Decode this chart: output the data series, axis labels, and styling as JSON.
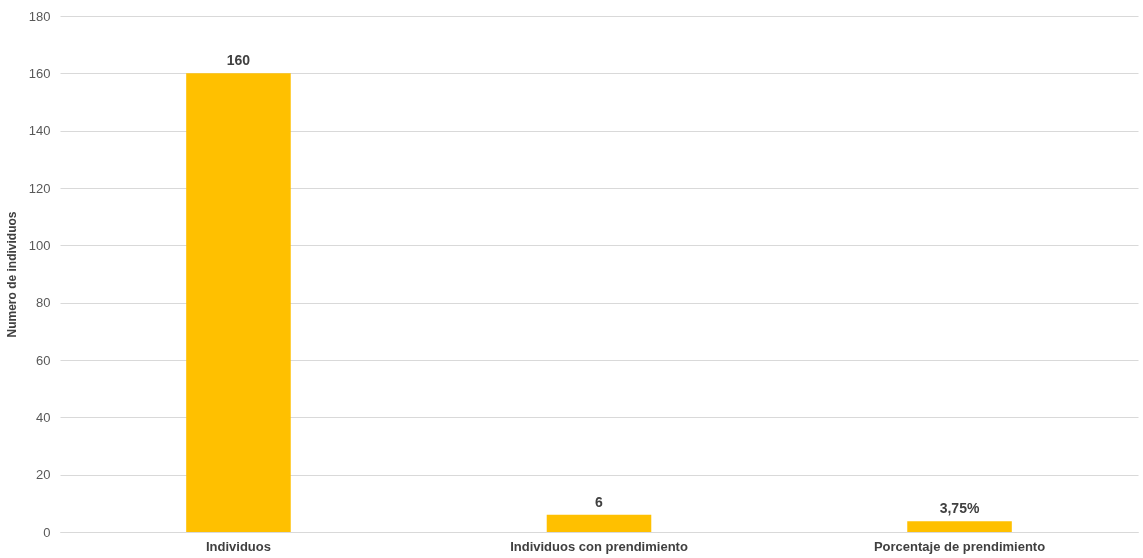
{
  "chart_data": {
    "type": "bar",
    "ylabel": "Numero de individuos",
    "categories": [
      "Individuos",
      "Individuos con prendimiento",
      "Porcentaje de prendimiento"
    ],
    "values": [
      160,
      6,
      3.75
    ],
    "value_labels": [
      "160",
      "6",
      "3,75%"
    ],
    "color": "#ffc000",
    "ylim": [
      0,
      180
    ],
    "yticks": [
      0,
      20,
      40,
      60,
      80,
      100,
      120,
      140,
      160,
      180
    ],
    "grid": "y"
  }
}
